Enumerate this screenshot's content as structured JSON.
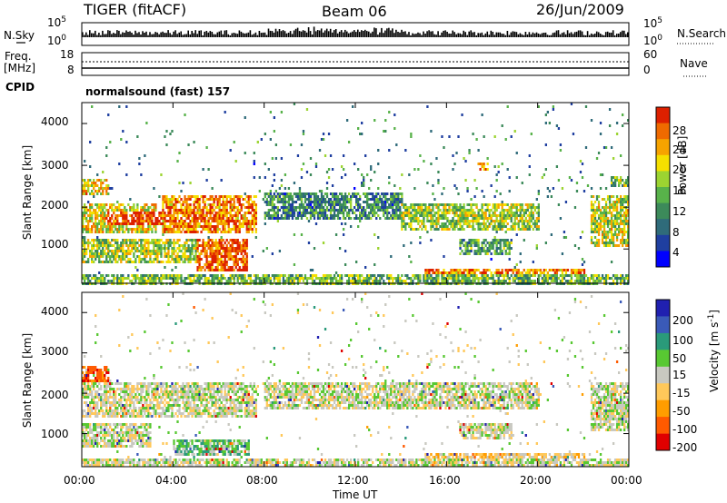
{
  "header": {
    "station": "TIGER (fitACF)",
    "beam": "Beam 06",
    "date": "26/Jun/2009"
  },
  "side_labels": {
    "nsky": "N.Sky",
    "nsearch": "N.Search",
    "freq": "Freq.",
    "freq_unit": "[MHz]",
    "nave": "Nave",
    "cpid": "CPID"
  },
  "cpid_text": "normalsound (fast) 157",
  "nsky_ticks": [
    "10^5",
    "10^0"
  ],
  "nsearch_ticks": [
    "10^5",
    "10^0"
  ],
  "freq_ticks": [
    "18",
    "8"
  ],
  "nave_ticks": [
    "60",
    "0"
  ],
  "x_axis": {
    "label": "Time UT",
    "ticks": [
      "00:00",
      "04:00",
      "08:00",
      "12:00",
      "16:00",
      "20:00",
      "00:00"
    ]
  },
  "y_axis": {
    "label": "Slant Range [km]",
    "ticks": [
      "1000",
      "2000",
      "3000",
      "4000"
    ]
  },
  "chart_data": [
    {
      "type": "heatmap",
      "panel": "power",
      "xlabel": "Time UT",
      "ylabel": "Slant Range [km]",
      "xlim_hours": [
        0,
        24
      ],
      "ylim": [
        180,
        4500
      ],
      "colorbar": {
        "label": "Power [dB]",
        "ticks": [
          "4",
          "8",
          "12",
          "16",
          "20",
          "24",
          "28"
        ],
        "colors": [
          "#0000ff",
          "#1f3fa0",
          "#2f6b7a",
          "#3c8a5a",
          "#58b24a",
          "#9cd431",
          "#f5e000",
          "#f6a300",
          "#ef6a00",
          "#dd2000"
        ]
      },
      "echo_regions": [
        {
          "t0": 0,
          "t1": 3.2,
          "r0": 1400,
          "r1": 2100,
          "level": 0.65
        },
        {
          "t0": 1,
          "t1": 5.2,
          "r0": 1600,
          "r1": 1900,
          "level": 0.95
        },
        {
          "t0": 3.5,
          "t1": 7.6,
          "r0": 1400,
          "r1": 2300,
          "level": 0.85
        },
        {
          "t0": 0,
          "t1": 5.5,
          "r0": 700,
          "r1": 1300,
          "level": 0.55
        },
        {
          "t0": 5,
          "t1": 7.2,
          "r0": 500,
          "r1": 1300,
          "level": 0.95
        },
        {
          "t0": 0,
          "t1": 1.2,
          "r0": 2300,
          "r1": 2700,
          "level": 0.7
        },
        {
          "t0": 8,
          "t1": 14,
          "r0": 1700,
          "r1": 2400,
          "level": 0.3
        },
        {
          "t0": 14,
          "t1": 20,
          "r0": 1500,
          "r1": 2100,
          "level": 0.55
        },
        {
          "t0": 16.5,
          "t1": 18.8,
          "r0": 900,
          "r1": 1300,
          "level": 0.4
        },
        {
          "t0": 15,
          "t1": 22,
          "r0": 250,
          "r1": 550,
          "level": 0.85
        },
        {
          "t0": 0,
          "t1": 24,
          "r0": 180,
          "r1": 400,
          "level": 0.45
        },
        {
          "t0": 22.3,
          "t1": 24,
          "r0": 1100,
          "r1": 2300,
          "level": 0.6
        },
        {
          "t0": 17.3,
          "t1": 17.8,
          "r0": 2900,
          "r1": 3100,
          "level": 0.8
        },
        {
          "t0": 23.2,
          "t1": 24,
          "r0": 2500,
          "r1": 2800,
          "level": 0.5
        }
      ]
    },
    {
      "type": "heatmap",
      "panel": "velocity",
      "xlabel": "Time UT",
      "ylabel": "Slant Range [km]",
      "xlim_hours": [
        0,
        24
      ],
      "ylim": [
        180,
        4500
      ],
      "colorbar": {
        "label": "Velocity [m s^-1]",
        "ticks": [
          "-200",
          "-100",
          "-50",
          "-15",
          "15",
          "50",
          "100",
          "200"
        ],
        "colors": [
          "#e00000",
          "#ff5a00",
          "#ff9d00",
          "#ffc85a",
          "#c8c8c0",
          "#58c832",
          "#2a9a7a",
          "#3a5ab8",
          "#2020b0"
        ]
      },
      "echo_regions": [
        {
          "t0": 0,
          "t1": 7.6,
          "r0": 1400,
          "r1": 2300,
          "v": 0
        },
        {
          "t0": 0,
          "t1": 3,
          "r0": 700,
          "r1": 1300,
          "v": 0
        },
        {
          "t0": 4,
          "t1": 7.3,
          "r0": 500,
          "r1": 900,
          "v": 1
        },
        {
          "t0": 0,
          "t1": 1.2,
          "r0": 2300,
          "r1": 2700,
          "v": -3
        },
        {
          "t0": 8,
          "t1": 20,
          "r0": 1600,
          "r1": 2300,
          "v": 0
        },
        {
          "t0": 15,
          "t1": 22,
          "r0": 250,
          "r1": 550,
          "v": -1
        },
        {
          "t0": 0,
          "t1": 24,
          "r0": 180,
          "r1": 400,
          "v": 0
        },
        {
          "t0": 22.3,
          "t1": 24,
          "r0": 1100,
          "r1": 2300,
          "v": 0
        },
        {
          "t0": 16.5,
          "t1": 18.8,
          "r0": 900,
          "r1": 1300,
          "v": 0
        }
      ]
    }
  ]
}
